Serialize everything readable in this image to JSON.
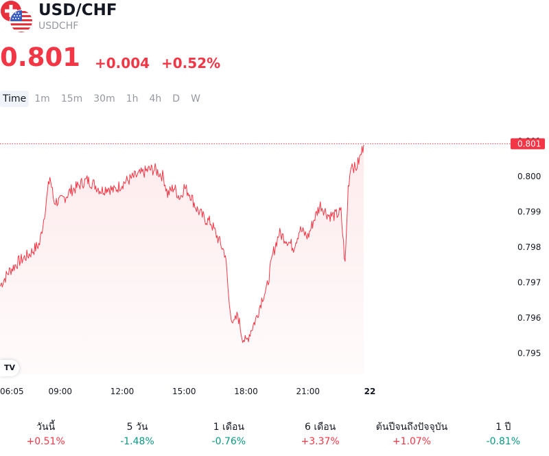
{
  "symbol": {
    "title": "USD/CHF",
    "ticker": "USDCHF"
  },
  "quote": {
    "price": "0.801",
    "change": "+0.004",
    "change_pct": "+0.52%"
  },
  "colors": {
    "up": "#f23645",
    "down": "#089981",
    "muted": "#9598a1"
  },
  "timeframes": [
    "Time",
    "1m",
    "15m",
    "30m",
    "1h",
    "4h",
    "D",
    "W"
  ],
  "chart_data": {
    "type": "area",
    "x_tick_labels": [
      "06:05",
      "09:00",
      "12:00",
      "15:00",
      "18:00",
      "21:00",
      "22"
    ],
    "y_ticks": [
      0.795,
      0.796,
      0.797,
      0.798,
      0.799,
      0.8,
      0.801
    ],
    "ylim": [
      0.7946,
      0.8015
    ],
    "last_price_label": "0.801",
    "last_value": 0.80093,
    "x_hours": [
      6.08,
      6.5,
      7.0,
      7.5,
      8.0,
      8.2,
      8.5,
      8.7,
      9.0,
      9.2,
      9.5,
      9.8,
      10.0,
      10.3,
      10.6,
      11.0,
      11.3,
      11.6,
      12.0,
      12.3,
      12.6,
      13.0,
      13.3,
      13.6,
      14.0,
      14.2,
      14.5,
      14.8,
      15.0,
      15.3,
      15.6,
      16.0,
      16.3,
      16.6,
      17.0,
      17.2,
      17.4,
      17.6,
      17.8,
      18.0,
      18.2,
      18.5,
      18.8,
      19.0,
      19.3,
      19.6,
      20.0,
      20.3,
      20.6,
      21.0,
      21.3,
      21.6,
      22.0,
      22.3,
      22.6,
      22.8,
      22.95,
      23.1,
      23.3,
      23.5,
      23.7
    ],
    "values": [
      0.7969,
      0.7973,
      0.7976,
      0.7978,
      0.7981,
      0.7988,
      0.8,
      0.7993,
      0.7993,
      0.7994,
      0.7996,
      0.7997,
      0.7998,
      0.7999,
      0.7998,
      0.7996,
      0.7997,
      0.7996,
      0.7998,
      0.7999,
      0.8,
      0.8001,
      0.8002,
      0.8002,
      0.8,
      0.7995,
      0.7997,
      0.7994,
      0.7997,
      0.7995,
      0.7991,
      0.7988,
      0.7987,
      0.7983,
      0.7978,
      0.7963,
      0.7958,
      0.7961,
      0.7955,
      0.7953,
      0.7956,
      0.796,
      0.7966,
      0.7968,
      0.7978,
      0.7984,
      0.7982,
      0.798,
      0.7985,
      0.7983,
      0.7988,
      0.7992,
      0.7989,
      0.7989,
      0.799,
      0.7975,
      0.7997,
      0.8004,
      0.8002,
      0.8005,
      0.8009
    ]
  },
  "performance": [
    {
      "label": "วันนี้",
      "value": "+0.51%",
      "dir": "pos"
    },
    {
      "label": "5 วัน",
      "value": "-1.48%",
      "dir": "neg"
    },
    {
      "label": "1 เดือน",
      "value": "-0.76%",
      "dir": "neg"
    },
    {
      "label": "6 เดือน",
      "value": "+3.37%",
      "dir": "pos"
    },
    {
      "label": "ต้นปีจนถึงปัจจุบัน",
      "value": "+1.07%",
      "dir": "pos"
    },
    {
      "label": "1 ปี",
      "value": "-0.81%",
      "dir": "neg"
    }
  ],
  "logo_icon": "swiss-us-flag-icon",
  "watermark_icon": "tradingview-logo-icon"
}
